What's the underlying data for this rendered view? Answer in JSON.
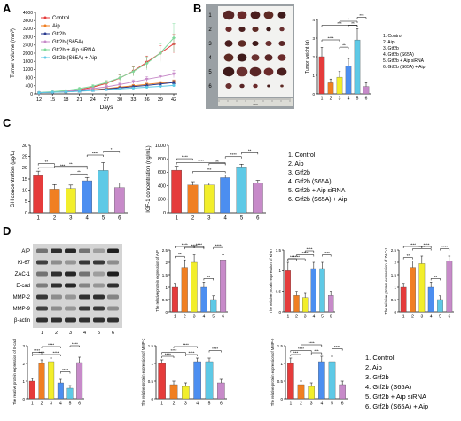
{
  "panels": {
    "A": "A",
    "B": "B",
    "C": "C",
    "D": "D"
  },
  "legend": [
    "1. Control",
    "2. Aip",
    "3. Gtf2b",
    "4. Gtf2b (S65A)",
    "5. Gtf2b + Aip siRNA",
    "6. Gtf2b (S65A) + Aip"
  ],
  "colors": [
    "#e53b3b",
    "#f07f22",
    "#f2ee2b",
    "#4c8ef0",
    "#5ec9e6",
    "#c78ac9",
    "#2a3b8f",
    "#7fd99b"
  ],
  "photo": {
    "row_labels": [
      "1",
      "2",
      "3",
      "4",
      "5",
      "6"
    ],
    "ruler_text": "cm"
  },
  "blot": {
    "labels": [
      "AIP",
      "Ki-67",
      "ZAC-1",
      "E-cad",
      "MMP-2",
      "MMP-9",
      "β-actin"
    ],
    "lanes": [
      "1",
      "2",
      "3",
      "4",
      "5",
      "6"
    ]
  },
  "chart_data": [
    {
      "id": "A",
      "type": "line",
      "xlabel": "Days",
      "ylabel": "Tumor volume (mm³)",
      "x": [
        12,
        15,
        18,
        21,
        24,
        27,
        30,
        33,
        36,
        39,
        42
      ],
      "ylim": [
        0,
        4000
      ],
      "yticks": [
        0,
        400,
        800,
        1200,
        1600,
        2000,
        2400,
        2800,
        3200,
        3600,
        4000
      ],
      "legend_position": "top-left",
      "series": [
        {
          "name": "Control",
          "color": "#e53b3b",
          "marker": "circle",
          "values": [
            60,
            90,
            140,
            210,
            330,
            520,
            780,
            1120,
            1560,
            2000,
            2460
          ],
          "err": [
            10,
            15,
            25,
            40,
            60,
            100,
            150,
            220,
            300,
            380,
            460
          ]
        },
        {
          "name": "Aip",
          "color": "#f07f22",
          "marker": "square",
          "values": [
            60,
            80,
            110,
            150,
            200,
            260,
            330,
            400,
            470,
            540,
            600
          ],
          "err": [
            10,
            12,
            15,
            20,
            25,
            30,
            40,
            50,
            60,
            70,
            90
          ]
        },
        {
          "name": "Gtf2b",
          "color": "#2a3b8f",
          "marker": "triangle",
          "values": [
            60,
            80,
            105,
            140,
            185,
            240,
            300,
            360,
            420,
            490,
            560
          ],
          "err": [
            10,
            12,
            15,
            20,
            25,
            30,
            40,
            50,
            60,
            70,
            90
          ]
        },
        {
          "name": "Gtf2b (S65A)",
          "color": "#c78ac9",
          "marker": "triangle-down",
          "values": [
            60,
            90,
            130,
            190,
            260,
            350,
            460,
            590,
            720,
            840,
            980
          ],
          "err": [
            10,
            15,
            20,
            30,
            40,
            60,
            80,
            100,
            130,
            150,
            180
          ]
        },
        {
          "name": "Gtf2b + Aip siRNA",
          "color": "#7fd99b",
          "marker": "diamond",
          "values": [
            70,
            110,
            170,
            260,
            380,
            560,
            790,
            1100,
            1500,
            2000,
            2750
          ],
          "err": [
            15,
            20,
            30,
            50,
            70,
            100,
            150,
            220,
            320,
            450,
            700
          ]
        },
        {
          "name": "Gtf2b (S65A) + Aip",
          "color": "#5ec9e6",
          "marker": "circle",
          "values": [
            60,
            80,
            100,
            130,
            170,
            210,
            250,
            290,
            330,
            370,
            420
          ],
          "err": [
            10,
            12,
            15,
            18,
            20,
            25,
            30,
            35,
            40,
            45,
            55
          ]
        }
      ]
    },
    {
      "id": "B",
      "type": "bar",
      "ylabel": "Tumor weight (g)",
      "categories": [
        "1",
        "2",
        "3",
        "4",
        "5",
        "6"
      ],
      "values": [
        2.0,
        0.6,
        0.9,
        1.5,
        2.9,
        0.4
      ],
      "err": [
        0.5,
        0.2,
        0.3,
        0.4,
        0.6,
        0.2
      ],
      "ylim": [
        0,
        4
      ],
      "yticks": [
        0,
        1,
        2,
        3,
        4
      ],
      "sig": [
        {
          "a": 1,
          "b": 5,
          "text": "***"
        },
        {
          "a": 1,
          "b": 3,
          "text": "****"
        },
        {
          "a": 3,
          "b": 4,
          "text": "**"
        },
        {
          "a": 4,
          "b": 5,
          "text": "**"
        },
        {
          "a": 3,
          "b": 5,
          "text": "*"
        },
        {
          "a": 5,
          "b": 6,
          "text": "***"
        }
      ]
    },
    {
      "id": "C1",
      "type": "bar",
      "ylabel": "GH concentration (μg/L)",
      "categories": [
        "1",
        "2",
        "3",
        "4",
        "5",
        "6"
      ],
      "values": [
        16.5,
        10.5,
        10.8,
        14.2,
        18.8,
        11.2
      ],
      "err": [
        2,
        2,
        1.5,
        1.5,
        3.5,
        2
      ],
      "ylim": [
        0,
        30
      ],
      "yticks": [
        0,
        5,
        10,
        15,
        20,
        25,
        30
      ],
      "sig": [
        {
          "a": 1,
          "b": 4,
          "text": "***"
        },
        {
          "a": 1,
          "b": 2,
          "text": "**"
        },
        {
          "a": 2,
          "b": 4,
          "text": "**"
        },
        {
          "a": 3,
          "b": 4,
          "text": "**"
        },
        {
          "a": 4,
          "b": 5,
          "text": "****"
        },
        {
          "a": 5,
          "b": 6,
          "text": "*"
        }
      ]
    },
    {
      "id": "C2",
      "type": "bar",
      "ylabel": "IGF-1 concentration (ng/mL)",
      "categories": [
        "1",
        "2",
        "3",
        "4",
        "5",
        "6"
      ],
      "values": [
        630,
        410,
        410,
        520,
        680,
        440
      ],
      "err": [
        60,
        50,
        30,
        40,
        40,
        40
      ],
      "ylim": [
        0,
        1000
      ],
      "yticks": [
        0,
        200,
        400,
        600,
        800,
        1000
      ],
      "sig": [
        {
          "a": 1,
          "b": 4,
          "text": "****"
        },
        {
          "a": 1,
          "b": 2,
          "text": "****"
        },
        {
          "a": 3,
          "b": 4,
          "text": "**"
        },
        {
          "a": 2,
          "b": 4,
          "text": "***"
        },
        {
          "a": 4,
          "b": 5,
          "text": "****"
        },
        {
          "a": 5,
          "b": 6,
          "text": "**"
        }
      ]
    },
    {
      "id": "D1",
      "type": "bar",
      "ylabel": "The relative protein expression of AIP",
      "categories": [
        "1",
        "2",
        "3",
        "4",
        "5",
        "6"
      ],
      "values": [
        1.0,
        1.8,
        2.0,
        1.0,
        0.5,
        2.1
      ],
      "err": [
        0.15,
        0.3,
        0.3,
        0.2,
        0.15,
        0.2
      ],
      "ylim": [
        0,
        2.5
      ],
      "yticks": [
        0,
        0.5,
        1.0,
        1.5,
        2.0,
        2.5
      ],
      "sig": [
        {
          "a": 1,
          "b": 2,
          "text": "**"
        },
        {
          "a": 2,
          "b": 4,
          "text": "****"
        },
        {
          "a": 3,
          "b": 4,
          "text": "****"
        },
        {
          "a": 4,
          "b": 5,
          "text": "**"
        },
        {
          "a": 5,
          "b": 6,
          "text": "****"
        },
        {
          "a": 1,
          "b": 3,
          "text": "****"
        }
      ]
    },
    {
      "id": "D2",
      "type": "bar",
      "ylabel": "The relative protein expression of Ki-67",
      "categories": [
        "1",
        "2",
        "3",
        "4",
        "5",
        "6"
      ],
      "values": [
        1.0,
        0.4,
        0.35,
        1.05,
        1.05,
        0.4
      ],
      "err": [
        0.2,
        0.1,
        0.1,
        0.15,
        0.15,
        0.1
      ],
      "ylim": [
        0,
        1.5
      ],
      "yticks": [
        0,
        0.5,
        1.0,
        1.5
      ],
      "sig": [
        {
          "a": 1,
          "b": 2,
          "text": "***"
        },
        {
          "a": 2,
          "b": 4,
          "text": "****"
        },
        {
          "a": 3,
          "b": 4,
          "text": "****"
        },
        {
          "a": 1,
          "b": 3,
          "text": "****"
        },
        {
          "a": 5,
          "b": 6,
          "text": "****"
        }
      ]
    },
    {
      "id": "D3",
      "type": "bar",
      "ylabel": "The relative protein expression of ZAC-1",
      "categories": [
        "1",
        "2",
        "3",
        "4",
        "5",
        "6"
      ],
      "values": [
        1.0,
        1.8,
        1.95,
        1.0,
        0.5,
        2.05
      ],
      "err": [
        0.15,
        0.25,
        0.3,
        0.2,
        0.15,
        0.2
      ],
      "ylim": [
        0,
        2.5
      ],
      "yticks": [
        0,
        0.5,
        1.0,
        1.5,
        2.0,
        2.5
      ],
      "sig": [
        {
          "a": 1,
          "b": 2,
          "text": "**"
        },
        {
          "a": 2,
          "b": 4,
          "text": "****"
        },
        {
          "a": 3,
          "b": 4,
          "text": "****"
        },
        {
          "a": 4,
          "b": 5,
          "text": "**"
        },
        {
          "a": 5,
          "b": 6,
          "text": "****"
        },
        {
          "a": 1,
          "b": 3,
          "text": "****"
        }
      ]
    },
    {
      "id": "D4",
      "type": "bar",
      "ylabel": "The relative protein expression of E-cad",
      "categories": [
        "1",
        "2",
        "3",
        "4",
        "5",
        "6"
      ],
      "values": [
        1.0,
        2.0,
        2.1,
        0.9,
        0.6,
        2.05
      ],
      "err": [
        0.15,
        0.2,
        0.2,
        0.2,
        0.15,
        0.3
      ],
      "ylim": [
        0,
        3
      ],
      "yticks": [
        0,
        1,
        2,
        3
      ],
      "sig": [
        {
          "a": 1,
          "b": 3,
          "text": "****"
        },
        {
          "a": 1,
          "b": 2,
          "text": "****"
        },
        {
          "a": 2,
          "b": 4,
          "text": "****"
        },
        {
          "a": 3,
          "b": 4,
          "text": "****"
        },
        {
          "a": 4,
          "b": 5,
          "text": "****"
        },
        {
          "a": 5,
          "b": 6,
          "text": "****"
        }
      ]
    },
    {
      "id": "D5",
      "type": "bar",
      "ylabel": "The relative protein expression of MMP-2",
      "categories": [
        "1",
        "2",
        "3",
        "4",
        "5",
        "6"
      ],
      "values": [
        1.0,
        0.4,
        0.35,
        1.05,
        1.05,
        0.45
      ],
      "err": [
        0.1,
        0.1,
        0.1,
        0.1,
        0.1,
        0.1
      ],
      "ylim": [
        0,
        1.5
      ],
      "yticks": [
        0,
        0.5,
        1.0,
        1.5
      ],
      "sig": [
        {
          "a": 1,
          "b": 2,
          "text": "****"
        },
        {
          "a": 1,
          "b": 3,
          "text": "****"
        },
        {
          "a": 2,
          "b": 4,
          "text": "****"
        },
        {
          "a": 3,
          "b": 4,
          "text": "****"
        },
        {
          "a": 5,
          "b": 6,
          "text": "****"
        }
      ]
    },
    {
      "id": "D6",
      "type": "bar",
      "ylabel": "The relative protein expression of MMP-9",
      "categories": [
        "1",
        "2",
        "3",
        "4",
        "5",
        "6"
      ],
      "values": [
        1.0,
        0.4,
        0.35,
        1.05,
        1.05,
        0.4
      ],
      "err": [
        0.15,
        0.1,
        0.1,
        0.15,
        0.15,
        0.1
      ],
      "ylim": [
        0,
        1.5
      ],
      "yticks": [
        0,
        0.5,
        1.0,
        1.5
      ],
      "sig": [
        {
          "a": 1,
          "b": 2,
          "text": "***"
        },
        {
          "a": 1,
          "b": 3,
          "text": "****"
        },
        {
          "a": 2,
          "b": 4,
          "text": "****"
        },
        {
          "a": 3,
          "b": 4,
          "text": "***"
        },
        {
          "a": 5,
          "b": 6,
          "text": "****"
        }
      ]
    }
  ]
}
